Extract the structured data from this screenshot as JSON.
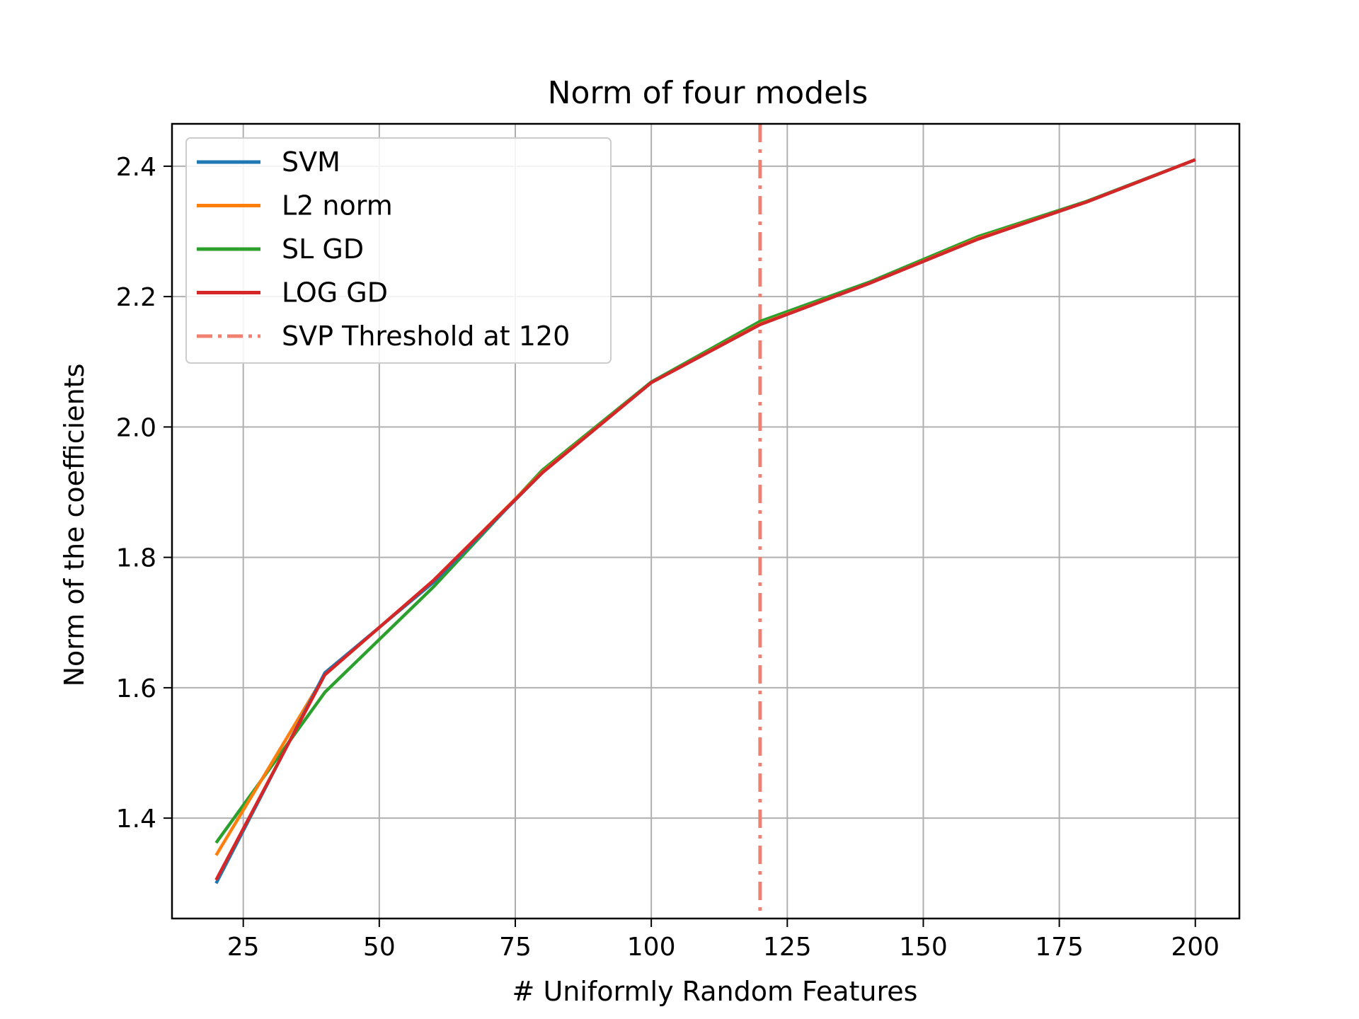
{
  "chart_data": {
    "type": "line",
    "title": "Norm of four models",
    "xlabel": "# Uniformly Random Features",
    "ylabel": "Norm of the coefficients",
    "xlim": [
      11.9,
      208.1
    ],
    "ylim": [
      1.246,
      2.465
    ],
    "xticks": [
      25,
      50,
      75,
      100,
      125,
      150,
      175,
      200
    ],
    "yticks": [
      1.4,
      1.6,
      1.8,
      2.0,
      2.2,
      2.4
    ],
    "xtick_labels": [
      "25",
      "50",
      "75",
      "100",
      "125",
      "150",
      "175",
      "200"
    ],
    "ytick_labels": [
      "1.4",
      "1.6",
      "1.8",
      "2.0",
      "2.2",
      "2.4"
    ],
    "grid": true,
    "legend_position": "upper-left",
    "x": [
      20,
      40,
      60,
      80,
      100,
      120,
      140,
      160,
      180,
      200
    ],
    "series": [
      {
        "name": "SVM",
        "color": "#1f77b4",
        "values": [
          1.3,
          1.623,
          1.762,
          1.93,
          2.068,
          2.157,
          2.22,
          2.288,
          2.345,
          2.41
        ]
      },
      {
        "name": "L2 norm",
        "color": "#ff7f0e",
        "values": [
          1.343,
          1.62,
          1.765,
          1.931,
          2.068,
          2.158,
          2.22,
          2.289,
          2.345,
          2.41
        ]
      },
      {
        "name": "SL GD",
        "color": "#2ca02c",
        "values": [
          1.362,
          1.593,
          1.755,
          1.934,
          2.069,
          2.162,
          2.222,
          2.292,
          2.346,
          2.41
        ]
      },
      {
        "name": "LOG GD",
        "color": "#d62728",
        "values": [
          1.305,
          1.62,
          1.765,
          1.93,
          2.068,
          2.157,
          2.22,
          2.288,
          2.345,
          2.41
        ]
      }
    ],
    "threshold": {
      "name": "SVP Threshold at 120",
      "x": 120,
      "color": "#f08070",
      "style": "dashdot"
    }
  }
}
